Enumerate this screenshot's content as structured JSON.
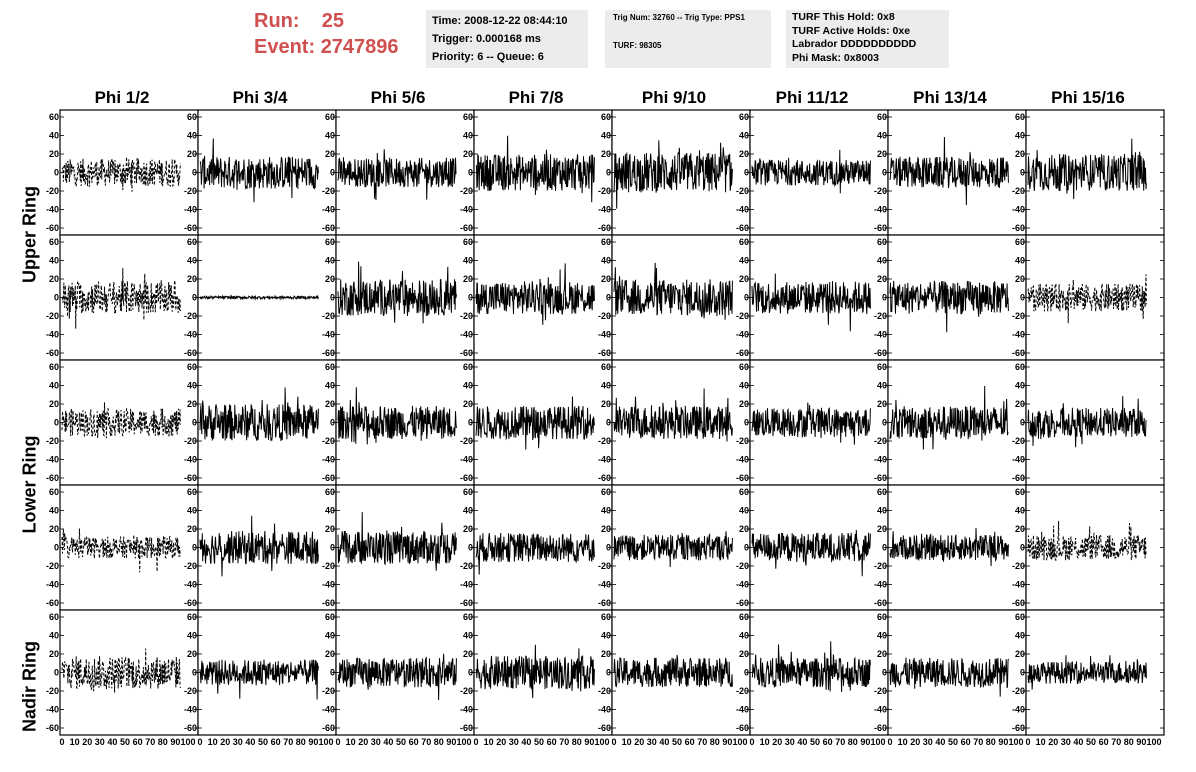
{
  "header": {
    "run_label": "Run:",
    "run_value": "25",
    "event_label": "Event:",
    "event_value": "2747896",
    "run_color": "#d05050"
  },
  "info_time": {
    "time": "Time: 2008-12-22 08:44:10",
    "trigger": "Trigger: 0.000168 ms",
    "priority": "Priority: 6 -- Queue: 6"
  },
  "info_trig": {
    "trig": "Trig Num: 32760 -- Trig Type: PPS1",
    "turf": "TURF: 98305"
  },
  "info_turf": {
    "hold": "TURF This Hold: 0x8",
    "active": "TURF Active Holds: 0xe",
    "labrador": "Labrador DDDDDDDDDD",
    "phimask": "Phi Mask: 0x8003"
  },
  "columns": [
    "Phi 1/2",
    "Phi 3/4",
    "Phi 5/6",
    "Phi 7/8",
    "Phi 9/10",
    "Phi 11/12",
    "Phi 13/14",
    "Phi 15/16"
  ],
  "row_labels": [
    "Upper Ring",
    "Lower Ring",
    "Nadir Ring"
  ],
  "chart_data": {
    "type": "line",
    "description_rows": 5,
    "xlim": [
      0,
      100
    ],
    "ylim": [
      -60,
      60
    ],
    "y_ticks": [
      60,
      40,
      20,
      0,
      -20,
      -40,
      -60
    ],
    "y_tick_labels": [
      "60",
      "40",
      "20",
      "0",
      "-20",
      "-40",
      "-60"
    ],
    "x_tick_labels": [
      "0",
      "10",
      "20",
      "30",
      "40",
      "50",
      "60",
      "70",
      "80",
      "90",
      "100"
    ],
    "panel_styles": [
      [
        "dashed",
        "solid",
        "solid",
        "solid",
        "solid",
        "solid",
        "solid",
        "solid"
      ],
      [
        "dashed",
        "flat",
        "solid",
        "solid",
        "solid",
        "solid",
        "solid",
        "dashed"
      ],
      [
        "dashed",
        "solid",
        "solid",
        "solid",
        "solid",
        "solid",
        "solid",
        "solid"
      ],
      [
        "dashed",
        "solid",
        "solid",
        "solid",
        "solid",
        "solid",
        "solid",
        "dashed"
      ],
      [
        "dashed",
        "solid",
        "solid",
        "solid",
        "solid",
        "solid",
        "solid",
        "solid"
      ]
    ],
    "panel_amplitudes": [
      [
        15,
        18,
        16,
        20,
        22,
        14,
        17,
        20
      ],
      [
        18,
        1,
        20,
        18,
        20,
        18,
        18,
        15
      ],
      [
        15,
        20,
        18,
        18,
        18,
        16,
        18,
        16
      ],
      [
        12,
        18,
        18,
        16,
        14,
        16,
        14,
        14
      ],
      [
        18,
        14,
        16,
        18,
        16,
        16,
        16,
        12
      ]
    ]
  }
}
